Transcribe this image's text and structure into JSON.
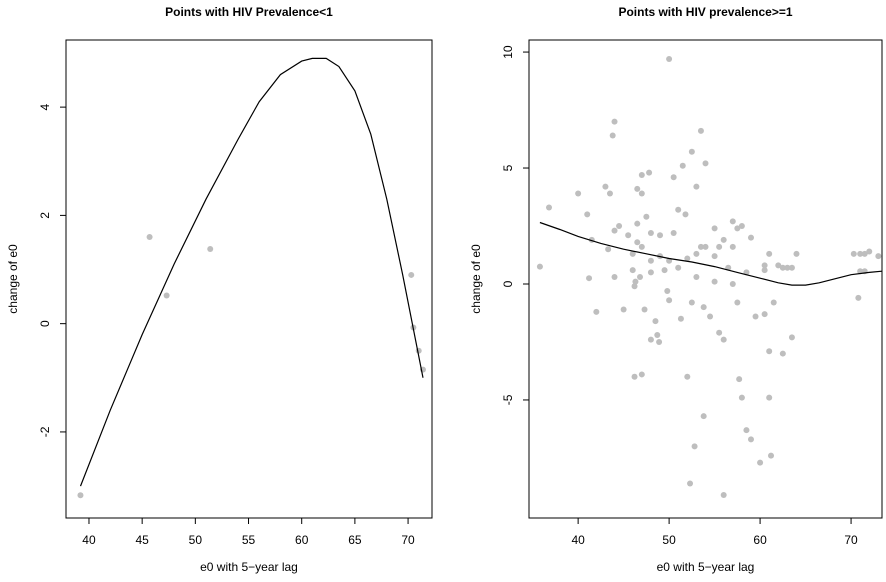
{
  "chart_data": [
    {
      "type": "scatter",
      "title": "Points with HIV Prevalence<1",
      "xlabel": "e0 with 5−year lag",
      "ylabel": "change of e0",
      "xlim": [
        37.84,
        72.25
      ],
      "ylim": [
        -3.59,
        5.24
      ],
      "xticks": [
        40,
        45,
        50,
        55,
        60,
        65,
        70
      ],
      "yticks": [
        -2,
        0,
        2,
        4
      ],
      "points": {
        "color": "#bebebe",
        "x": [
          39.2,
          45.7,
          47.3,
          51.4,
          70.3,
          70.5,
          71.0,
          71.4
        ],
        "y": [
          -3.17,
          1.6,
          0.52,
          1.38,
          0.9,
          -0.07,
          -0.5,
          -0.85
        ]
      },
      "curve": {
        "color": "#000000",
        "x": [
          39.2,
          42,
          45,
          48,
          51,
          54,
          56,
          58,
          60,
          61,
          62.3,
          63.5,
          65,
          66.5,
          68,
          69.5,
          70.5,
          71.4
        ],
        "y": [
          -3.0,
          -1.6,
          -0.2,
          1.1,
          2.3,
          3.4,
          4.1,
          4.6,
          4.85,
          4.9,
          4.9,
          4.75,
          4.3,
          3.5,
          2.3,
          0.9,
          -0.1,
          -1.0
        ]
      }
    },
    {
      "type": "scatter",
      "title": "Points with HIV prevalence>=1",
      "xlabel": "e0 with 5−year lag",
      "ylabel": "change of e0",
      "xlim": [
        34.6,
        73.4
      ],
      "ylim": [
        -10.09,
        10.52
      ],
      "xticks": [
        40,
        50,
        60,
        70
      ],
      "yticks": [
        -5,
        0,
        5,
        10
      ],
      "points": {
        "color": "#bebebe",
        "x": [
          35.8,
          36.8,
          40,
          41,
          41.2,
          41.5,
          42,
          43,
          43.3,
          43.5,
          43.8,
          44,
          44,
          44.5,
          44,
          45,
          45.5,
          46,
          46,
          46.2,
          46.5,
          46.5,
          46.3,
          46.8,
          46.5,
          47,
          47,
          47,
          46.2,
          47,
          47.3,
          47.5,
          47.8,
          48,
          48,
          48,
          48,
          48.5,
          48.7,
          48.9,
          49,
          49,
          49.5,
          49.8,
          50,
          50,
          50,
          50.5,
          50.5,
          51,
          51,
          51.3,
          51.5,
          51.8,
          52,
          52.5,
          52.5,
          52,
          52.3,
          52.8,
          53,
          53,
          53,
          53.5,
          53.5,
          53.8,
          53.8,
          54,
          54,
          54.5,
          55,
          55,
          55,
          55.5,
          55.5,
          56,
          56,
          56,
          56.5,
          57,
          57,
          57,
          57.5,
          57.5,
          57.7,
          58,
          58,
          58.5,
          58.5,
          59,
          59,
          59.5,
          60,
          60.5,
          60.5,
          60.5,
          61,
          61,
          61,
          61.2,
          61.5,
          62,
          62.5,
          62.5,
          63,
          63.5,
          63.5,
          64,
          70.3,
          70.8,
          71,
          71.5,
          72,
          73,
          71.5,
          71
        ],
        "y": [
          0.75,
          3.3,
          3.9,
          3.0,
          0.25,
          1.9,
          -1.2,
          4.2,
          1.5,
          3.9,
          6.4,
          7.0,
          2.3,
          2.5,
          0.3,
          -1.1,
          2.1,
          1.3,
          0.6,
          -0.1,
          2.6,
          1.8,
          0.1,
          0.3,
          4.1,
          4.7,
          3.9,
          1.6,
          -4.0,
          -3.9,
          -1.1,
          2.9,
          4.8,
          2.2,
          1.0,
          0.5,
          -2.4,
          -1.6,
          -2.2,
          -2.5,
          1.2,
          2.1,
          0.6,
          -0.3,
          -0.7,
          9.7,
          1.0,
          4.6,
          2.2,
          3.2,
          0.7,
          -1.5,
          5.1,
          3.0,
          1.1,
          5.7,
          -0.8,
          -4.0,
          -8.6,
          -7.0,
          4.2,
          1.3,
          0.3,
          6.6,
          1.6,
          -1.0,
          -5.7,
          5.2,
          1.6,
          -1.4,
          2.4,
          1.2,
          0.1,
          -2.1,
          1.6,
          -9.1,
          -2.4,
          1.9,
          0.7,
          2.7,
          1.6,
          0.0,
          -0.8,
          2.4,
          -4.1,
          2.5,
          -4.9,
          0.5,
          -6.3,
          -6.7,
          2.0,
          -1.4,
          -7.7,
          0.8,
          0.6,
          -1.3,
          1.3,
          -4.9,
          -2.9,
          -7.4,
          -0.8,
          0.8,
          -3.0,
          0.7,
          0.7,
          -2.3,
          0.7,
          1.3,
          1.3,
          -0.6,
          0.55,
          1.3,
          1.4,
          1.2,
          0.55,
          1.3
        ]
      },
      "curve": {
        "color": "#000000",
        "x": [
          35.8,
          38,
          40,
          42.5,
          45,
          47.5,
          50,
          52.5,
          55,
          57.5,
          60,
          62,
          63.5,
          65,
          66.5,
          68,
          70,
          72,
          73.4
        ],
        "y": [
          2.65,
          2.35,
          2.05,
          1.75,
          1.5,
          1.3,
          1.1,
          0.95,
          0.75,
          0.5,
          0.25,
          0.05,
          -0.05,
          -0.05,
          0.05,
          0.2,
          0.4,
          0.5,
          0.55
        ]
      }
    }
  ]
}
